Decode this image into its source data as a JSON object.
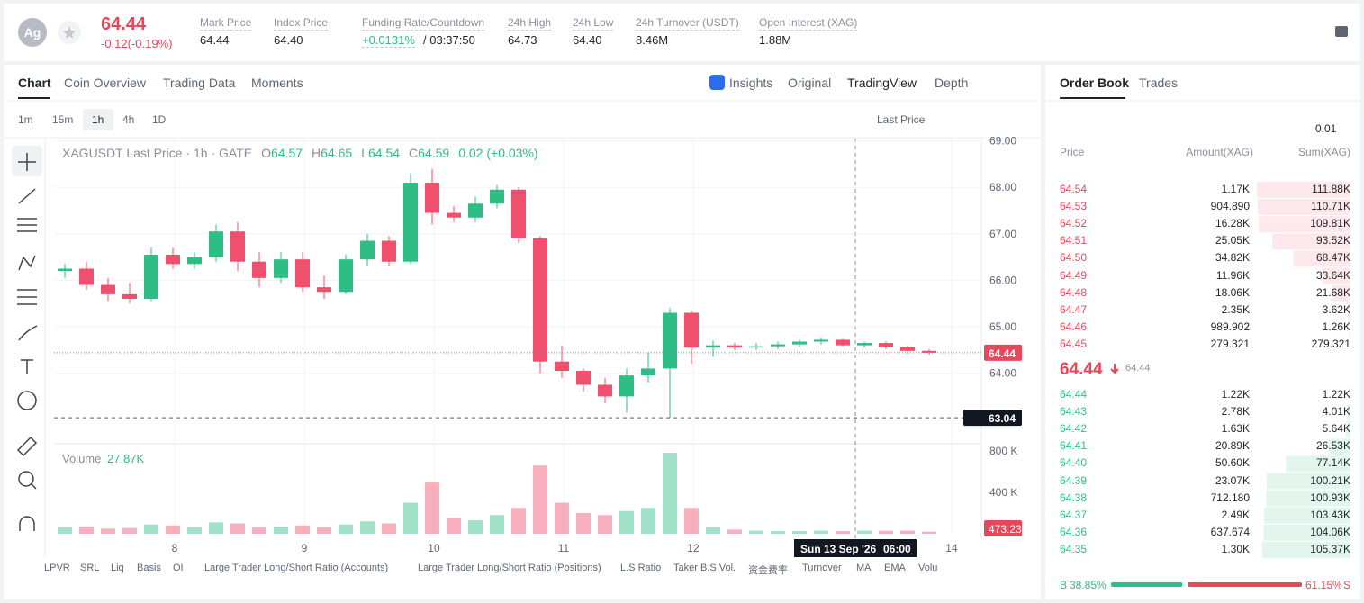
{
  "header": {
    "symbol_icon": "Ag",
    "price": "64.44",
    "change": "-0.12(-0.19%)",
    "stats": [
      {
        "label": "Mark Price",
        "value": "64.44"
      },
      {
        "label": "Index Price",
        "value": "64.40"
      },
      {
        "label": "Funding Rate/Countdown",
        "value": "+0.0131%",
        "countdown": "/ 03:37:50"
      },
      {
        "label": "24h High",
        "value": "64.73"
      },
      {
        "label": "24h Low",
        "value": "64.40"
      },
      {
        "label": "24h Turnover (USDT)",
        "value": "8.46M"
      },
      {
        "label": "Open Interest (XAG)",
        "value": "1.88M"
      }
    ]
  },
  "tabs": {
    "left": [
      "Chart",
      "Coin Overview",
      "Trading Data",
      "Moments"
    ],
    "right": [
      "Insights",
      "Original",
      "TradingView",
      "Depth"
    ]
  },
  "toolbar": {
    "intervals": [
      "1m",
      "15m",
      "1h",
      "4h",
      "1D"
    ],
    "price_source": "Last Price"
  },
  "legend": {
    "title": "XAGUSDT Last Price · 1h · GATE",
    "ohlc": [
      {
        "key": "O",
        "value": "64.57"
      },
      {
        "key": "H",
        "value": "64.65"
      },
      {
        "key": "L",
        "value": "64.54"
      },
      {
        "key": "C",
        "value": "64.59"
      }
    ],
    "change": "0.02 (+0.03%)",
    "volume_title": "Volume",
    "volume_value": "27.87K"
  },
  "chart_data": {
    "type": "candlestick",
    "open": [
      66.2,
      66.25,
      65.9,
      65.7,
      65.6,
      66.55,
      66.35,
      66.5,
      67.05,
      66.4,
      66.05,
      66.45,
      65.85,
      65.75,
      66.45,
      66.85,
      66.4,
      68.1,
      67.45,
      67.35,
      67.65,
      67.95,
      66.9,
      64.25,
      64.05,
      63.75,
      63.5,
      63.95,
      64.1,
      65.3,
      64.55,
      64.6,
      64.55,
      64.58,
      64.62,
      64.68,
      64.72,
      64.6,
      64.65,
      64.57,
      64.48
    ],
    "high": [
      66.35,
      66.4,
      66.05,
      65.95,
      66.7,
      66.7,
      66.6,
      67.2,
      67.25,
      66.6,
      66.6,
      66.6,
      66.1,
      66.55,
      67.0,
      66.95,
      68.3,
      68.4,
      67.6,
      67.8,
      68.05,
      68.0,
      66.95,
      64.6,
      64.1,
      63.9,
      64.1,
      64.45,
      65.4,
      65.35,
      64.7,
      64.65,
      64.65,
      64.68,
      64.72,
      64.76,
      64.74,
      64.68,
      64.68,
      64.6,
      64.52
    ],
    "low": [
      66.05,
      65.8,
      65.55,
      65.5,
      65.55,
      66.25,
      66.25,
      66.4,
      66.2,
      65.85,
      65.95,
      65.75,
      65.6,
      65.7,
      66.3,
      66.3,
      66.35,
      67.2,
      67.25,
      67.25,
      67.55,
      66.8,
      64.0,
      63.9,
      63.6,
      63.35,
      63.15,
      63.8,
      63.04,
      64.2,
      64.35,
      64.5,
      64.5,
      64.52,
      64.56,
      64.62,
      64.58,
      64.55,
      64.52,
      64.42,
      64.4
    ],
    "close": [
      66.25,
      65.9,
      65.7,
      65.6,
      66.55,
      66.35,
      66.5,
      67.05,
      66.4,
      66.05,
      66.45,
      65.85,
      65.75,
      66.45,
      66.85,
      66.4,
      68.1,
      67.45,
      67.35,
      67.65,
      67.95,
      66.9,
      64.25,
      64.05,
      63.75,
      63.5,
      63.95,
      64.1,
      65.3,
      64.55,
      64.6,
      64.55,
      64.58,
      64.62,
      64.68,
      64.72,
      64.6,
      64.65,
      64.57,
      64.48,
      64.44
    ],
    "volume": [
      60000,
      70000,
      50000,
      55000,
      90000,
      80000,
      60000,
      110000,
      100000,
      60000,
      70000,
      80000,
      60000,
      90000,
      120000,
      100000,
      300000,
      495000,
      150000,
      130000,
      180000,
      250000,
      660000,
      300000,
      200000,
      180000,
      220000,
      250000,
      783000,
      250000,
      60000,
      40000,
      30000,
      25000,
      25000,
      30000,
      25000,
      30000,
      28000,
      30000,
      20000
    ],
    "xlim": [
      -0.5,
      42.417
    ],
    "xticks": [
      {
        "value": 5.083,
        "label": "8"
      },
      {
        "value": 11.083,
        "label": "9"
      },
      {
        "value": 17.083,
        "label": "10"
      },
      {
        "value": 23.083,
        "label": "11"
      },
      {
        "value": 29.083,
        "label": "12"
      },
      {
        "value": 41.04,
        "label": "14"
      }
    ],
    "ylim": [
      62.5,
      69.05
    ],
    "yticks": [
      {
        "value": 69,
        "label": "69.00"
      },
      {
        "value": 68,
        "label": "68.00"
      },
      {
        "value": 67,
        "label": "67.00"
      },
      {
        "value": 66,
        "label": "66.00"
      },
      {
        "value": 65,
        "label": "65.00"
      },
      {
        "value": 64,
        "label": "64.00"
      }
    ],
    "volume_ylim": [
      0,
      870000
    ],
    "volume_yticks": [
      {
        "value": 800000,
        "label": "800 K"
      },
      {
        "value": 400000,
        "label": "400 K"
      }
    ],
    "last_price": {
      "value": 64.44,
      "label": "64.44"
    },
    "crosshair_price": {
      "value": 63.04,
      "label": "63.04"
    },
    "crosshair_time": [
      "Sun 13 Sep '26",
      "06:00"
    ],
    "volume_tag": "473.23",
    "up_color": "#2ebd85",
    "down_color": "#f0506e",
    "grid": true
  },
  "indicators": [
    "LPVR",
    "SRL",
    "Liq",
    "Basis",
    "OI",
    "Large Trader Long/Short Ratio (Accounts)",
    "Large Trader Long/Short Ratio (Positions)",
    "L.S Ratio",
    "Taker B.S Vol.",
    "资金费率",
    "Turnover",
    "MA",
    "EMA",
    "Volu"
  ],
  "order_book": {
    "tabs": [
      "Order Book",
      "Trades"
    ],
    "precision": "0.01",
    "columns": [
      "Price",
      "Amount(XAG)",
      "Sum(XAG)"
    ],
    "asks": {
      "prices": [
        "64.54",
        "64.53",
        "64.52",
        "64.51",
        "64.50",
        "64.49",
        "64.48",
        "64.47",
        "64.46",
        "64.45"
      ],
      "amounts": [
        "1.17K",
        "904.890",
        "16.28K",
        "25.05K",
        "34.82K",
        "11.96K",
        "18.06K",
        "2.35K",
        "989.902",
        "279.321"
      ],
      "sums": [
        111880,
        110710,
        109810,
        93520,
        68470,
        33640,
        21680,
        3620,
        1260,
        279.321
      ],
      "sum_labels": [
        "111.88K",
        "110.71K",
        "109.81K",
        "93.52K",
        "68.47K",
        "33.64K",
        "21.68K",
        "3.62K",
        "1.26K",
        "279.321"
      ]
    },
    "mid_price": "64.44",
    "mark_price": "64.44",
    "bids": {
      "prices": [
        "64.44",
        "64.43",
        "64.42",
        "64.41",
        "64.40",
        "64.39",
        "64.38",
        "64.37",
        "64.36",
        "64.35"
      ],
      "amounts": [
        "1.22K",
        "2.78K",
        "1.63K",
        "20.89K",
        "50.60K",
        "23.07K",
        "712.180",
        "2.49K",
        "637.674",
        "1.30K"
      ],
      "sums": [
        1220,
        4010,
        5640,
        26530,
        77140,
        100210,
        100930,
        103430,
        104060,
        105370
      ],
      "sum_labels": [
        "1.22K",
        "4.01K",
        "5.64K",
        "26.53K",
        "77.14K",
        "100.21K",
        "100.93K",
        "103.43K",
        "104.06K",
        "105.37K"
      ]
    },
    "ratio": {
      "buy_key": "B",
      "buy": {
        "value": 38.85,
        "label": "38.85%"
      },
      "sell": {
        "value": 61.15,
        "label": "61.15%"
      },
      "sell_key": "S"
    }
  }
}
